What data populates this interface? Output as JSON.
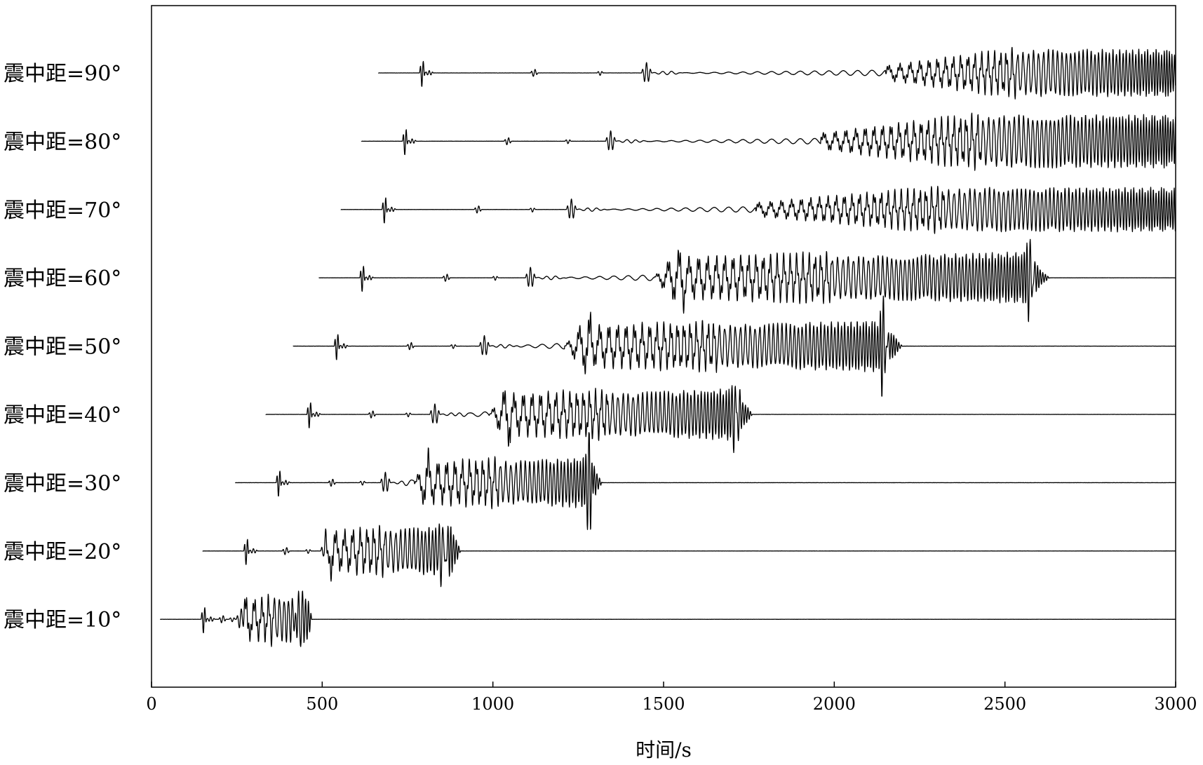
{
  "chart_data": {
    "type": "line",
    "title": "",
    "xlabel": "时间/s",
    "ylabel": "",
    "xlim": [
      0,
      3000
    ],
    "xticks": [
      0,
      500,
      1000,
      1500,
      2000,
      2500,
      3000
    ],
    "grid": false,
    "label_prefix": "震中距",
    "series": [
      {
        "name": "震中距=10°",
        "distance_deg": 10,
        "p_arrival_s": 145,
        "s_arrival_s": 248,
        "surface_start_s": 265,
        "surface_end_s": 470,
        "peak_time_s": 430,
        "peak_amplitude": 1.0
      },
      {
        "name": "震中距=20°",
        "distance_deg": 20,
        "p_arrival_s": 270,
        "s_arrival_s": 495,
        "surface_start_s": 500,
        "surface_end_s": 905,
        "peak_time_s": 855,
        "peak_amplitude": 1.0
      },
      {
        "name": "震中距=30°",
        "distance_deg": 30,
        "p_arrival_s": 365,
        "s_arrival_s": 670,
        "surface_start_s": 770,
        "surface_end_s": 1320,
        "peak_time_s": 1282,
        "peak_amplitude": 1.0
      },
      {
        "name": "震中距=40°",
        "distance_deg": 40,
        "p_arrival_s": 455,
        "s_arrival_s": 815,
        "surface_start_s": 990,
        "surface_end_s": 1760,
        "peak_time_s": 1712,
        "peak_amplitude": 1.0
      },
      {
        "name": "震中距=50°",
        "distance_deg": 50,
        "p_arrival_s": 535,
        "s_arrival_s": 960,
        "surface_start_s": 1210,
        "surface_end_s": 2200,
        "peak_time_s": 2145,
        "peak_amplitude": 1.0
      },
      {
        "name": "震中距=60°",
        "distance_deg": 60,
        "p_arrival_s": 610,
        "s_arrival_s": 1095,
        "surface_start_s": 1470,
        "surface_end_s": 2630,
        "peak_time_s": 2575,
        "peak_amplitude": 1.0
      },
      {
        "name": "震中距=70°",
        "distance_deg": 70,
        "p_arrival_s": 675,
        "s_arrival_s": 1215,
        "surface_start_s": 1770,
        "surface_end_s": 3000,
        "peak_time_s": 3000,
        "peak_amplitude": 0.75
      },
      {
        "name": "震中距=80°",
        "distance_deg": 80,
        "p_arrival_s": 735,
        "s_arrival_s": 1330,
        "surface_start_s": 1960,
        "surface_end_s": 3000,
        "peak_time_s": 3000,
        "peak_amplitude": 0.9
      },
      {
        "name": "震中距=90°",
        "distance_deg": 90,
        "p_arrival_s": 785,
        "s_arrival_s": 1435,
        "surface_start_s": 2150,
        "surface_end_s": 3000,
        "peak_time_s": 3000,
        "peak_amplitude": 0.8
      }
    ]
  }
}
